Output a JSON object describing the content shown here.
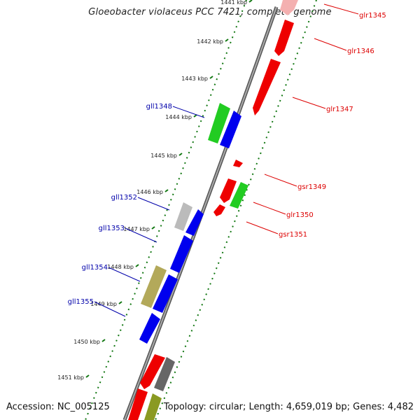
{
  "title": "Gloeobacter violaceus PCC 7421, complete genome",
  "footer": {
    "accession": "Accession: NC_005125",
    "summary": "Topology: circular; Length: 4,659,019 bp; Genes: 4,482"
  },
  "colors": {
    "forward_gene_label": "#dd0000",
    "reverse_gene_label": "#0000aa",
    "tick": "#117711",
    "backbone": "#777777"
  },
  "ticks": [
    "1441 kbp",
    "1442 kbp",
    "1443 kbp",
    "1444 kbp",
    "1445 kbp",
    "1446 kbp",
    "1447 kbp",
    "1448 kbp",
    "1449 kbp",
    "1450 kbp",
    "1451 kbp"
  ],
  "gene_labels": [
    {
      "name": "glr1345",
      "strand": "forward"
    },
    {
      "name": "glr1346",
      "strand": "forward"
    },
    {
      "name": "glr1347",
      "strand": "forward"
    },
    {
      "name": "gsr1349",
      "strand": "forward"
    },
    {
      "name": "glr1350",
      "strand": "forward"
    },
    {
      "name": "gsr1351",
      "strand": "forward"
    },
    {
      "name": "gll1348",
      "strand": "reverse"
    },
    {
      "name": "gll1352",
      "strand": "reverse"
    },
    {
      "name": "gll1353",
      "strand": "reverse"
    },
    {
      "name": "gll1354",
      "strand": "reverse"
    },
    {
      "name": "gll1355",
      "strand": "reverse"
    }
  ]
}
